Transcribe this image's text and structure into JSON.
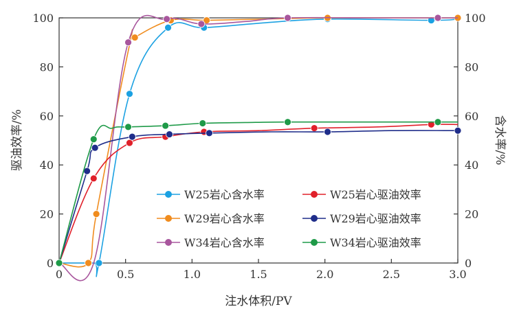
{
  "chart_data": {
    "type": "line",
    "title": "",
    "xlabel": "注水体积/PV",
    "ylabel_left": "驱油效率/%",
    "ylabel_right": "含水率/%",
    "xlim": [
      0,
      3.0
    ],
    "ylim_left": [
      0,
      100
    ],
    "ylim_right": [
      0,
      100
    ],
    "x_ticks": [
      "0",
      "0.5",
      "1.0",
      "1.5",
      "2.0",
      "2.5",
      "3.0"
    ],
    "y_ticks_left": [
      "0",
      "20",
      "40",
      "60",
      "80",
      "100"
    ],
    "y_ticks_right": [
      "0",
      "20",
      "40",
      "60",
      "80",
      "100"
    ],
    "grid": false,
    "legend_position": "bottom-right",
    "series": [
      {
        "name": "W25岩心含水率",
        "axis": "right",
        "color": "#1ba1e2",
        "points": [
          [
            0.0,
            0
          ],
          [
            0.26,
            0
          ],
          [
            0.3,
            0
          ],
          [
            0.53,
            69
          ],
          [
            0.82,
            96
          ],
          [
            1.09,
            96
          ],
          [
            1.55,
            98
          ],
          [
            2.02,
            99.5
          ],
          [
            2.8,
            99
          ],
          [
            3.0,
            99.5
          ]
        ],
        "markers": [
          [
            0.0,
            0
          ],
          [
            0.3,
            0
          ],
          [
            0.53,
            69
          ],
          [
            0.82,
            96
          ],
          [
            1.09,
            96
          ],
          [
            2.02,
            99.5
          ],
          [
            2.8,
            99
          ]
        ]
      },
      {
        "name": "W29岩心含水率",
        "axis": "right",
        "color": "#f08c1e",
        "points": [
          [
            0.0,
            0
          ],
          [
            0.22,
            0
          ],
          [
            0.28,
            20
          ],
          [
            0.53,
            89
          ],
          [
            0.57,
            92
          ],
          [
            0.84,
            99
          ],
          [
            1.11,
            99
          ],
          [
            1.55,
            99.5
          ],
          [
            2.02,
            100
          ],
          [
            2.8,
            100
          ],
          [
            3.0,
            100
          ]
        ],
        "markers": [
          [
            0.0,
            0
          ],
          [
            0.22,
            0
          ],
          [
            0.28,
            20
          ],
          [
            0.57,
            92
          ],
          [
            0.84,
            99
          ],
          [
            1.11,
            99
          ],
          [
            2.02,
            100
          ],
          [
            3.0,
            100
          ]
        ]
      },
      {
        "name": "W34岩心含水率",
        "axis": "right",
        "color": "#a8569d",
        "points": [
          [
            0.0,
            0
          ],
          [
            0.26,
            0
          ],
          [
            0.52,
            90
          ],
          [
            0.81,
            99.5
          ],
          [
            1.07,
            97.5
          ],
          [
            1.4,
            98.5
          ],
          [
            1.72,
            100
          ],
          [
            2.4,
            100
          ],
          [
            2.85,
            100
          ],
          [
            3.0,
            100
          ]
        ],
        "markers": [
          [
            0.0,
            0
          ],
          [
            0.52,
            90
          ],
          [
            0.81,
            99.5
          ],
          [
            1.07,
            97.5
          ],
          [
            1.72,
            100
          ],
          [
            2.85,
            100
          ]
        ]
      },
      {
        "name": "W25岩心驱油效率",
        "axis": "left",
        "color": "#e0202a",
        "points": [
          [
            0.0,
            0
          ],
          [
            0.26,
            34.5
          ],
          [
            0.53,
            49
          ],
          [
            0.8,
            51.5
          ],
          [
            1.09,
            53.5
          ],
          [
            1.5,
            54
          ],
          [
            1.92,
            55
          ],
          [
            2.4,
            55.5
          ],
          [
            2.8,
            56.5
          ],
          [
            3.0,
            56.5
          ]
        ],
        "markers": [
          [
            0.0,
            0
          ],
          [
            0.26,
            34.5
          ],
          [
            0.53,
            49
          ],
          [
            0.8,
            51.5
          ],
          [
            1.09,
            53.5
          ],
          [
            1.92,
            55
          ],
          [
            2.8,
            56.5
          ]
        ]
      },
      {
        "name": "W29岩心驱油效率",
        "axis": "left",
        "color": "#1f2d8a",
        "points": [
          [
            0.0,
            0
          ],
          [
            0.21,
            37.5
          ],
          [
            0.27,
            47
          ],
          [
            0.55,
            51.5
          ],
          [
            0.83,
            52.5
          ],
          [
            1.13,
            53
          ],
          [
            1.6,
            53.5
          ],
          [
            2.02,
            53.5
          ],
          [
            2.5,
            54
          ],
          [
            3.0,
            54
          ]
        ],
        "markers": [
          [
            0.0,
            0
          ],
          [
            0.21,
            37.5
          ],
          [
            0.27,
            47
          ],
          [
            0.55,
            51.5
          ],
          [
            0.83,
            52.5
          ],
          [
            1.13,
            53
          ],
          [
            2.02,
            53.5
          ],
          [
            3.0,
            54
          ]
        ]
      },
      {
        "name": "W34岩心驱油效率",
        "axis": "left",
        "color": "#1e9a48",
        "points": [
          [
            0.0,
            0
          ],
          [
            0.26,
            50.5
          ],
          [
            0.4,
            55
          ],
          [
            0.52,
            55.5
          ],
          [
            0.8,
            56
          ],
          [
            1.08,
            57
          ],
          [
            1.4,
            57.3
          ],
          [
            1.72,
            57.5
          ],
          [
            2.3,
            57.5
          ],
          [
            2.85,
            57.5
          ],
          [
            3.0,
            57.5
          ]
        ],
        "markers": [
          [
            0.0,
            0
          ],
          [
            0.26,
            50.5
          ],
          [
            0.52,
            55.5
          ],
          [
            0.8,
            56
          ],
          [
            1.08,
            57
          ],
          [
            1.72,
            57.5
          ],
          [
            2.85,
            57.5
          ]
        ]
      }
    ],
    "legend_order": [
      "W25岩心含水率",
      "W25岩心驱油效率",
      "W29岩心含水率",
      "W29岩心驱油效率",
      "W34岩心含水率",
      "W34岩心驱油效率"
    ]
  }
}
